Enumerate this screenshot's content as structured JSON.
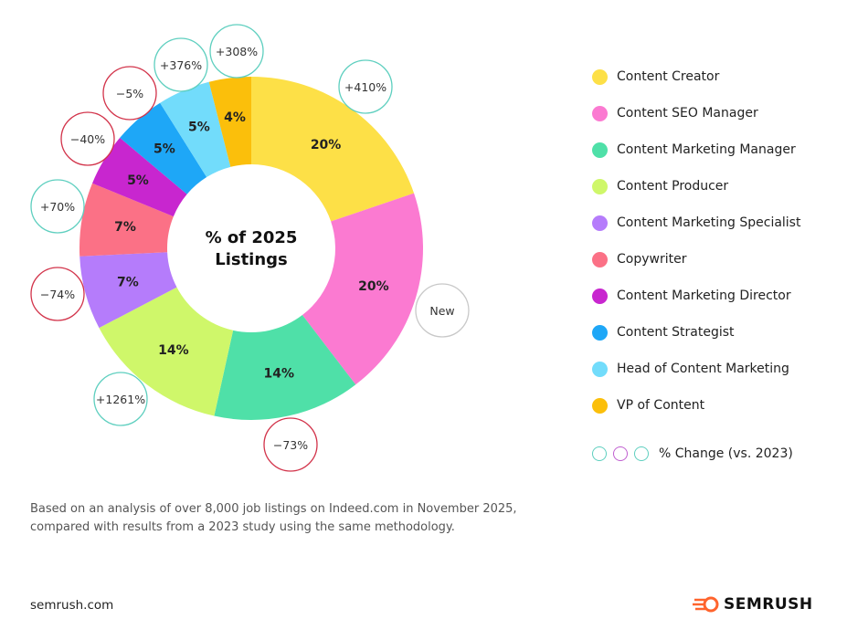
{
  "chart_data": {
    "type": "pie",
    "title": "% of 2025 Listings",
    "categories": [
      "Content Creator",
      "Content SEO Manager",
      "Content Marketing Manager",
      "Content Producer",
      "Content Marketing Specialist",
      "Copywriter",
      "Content Marketing Director",
      "Content Strategist",
      "Head of Content Marketing",
      "VP of Content"
    ],
    "values": [
      20,
      20,
      14,
      14,
      7,
      7,
      5,
      5,
      5,
      4
    ],
    "value_labels": [
      "20%",
      "20%",
      "14%",
      "14%",
      "7%",
      "7%",
      "5%",
      "5%",
      "5%",
      "4%"
    ],
    "change_labels": [
      "+410%",
      "New",
      "−73%",
      "+1261%",
      "−74%",
      "+70%",
      "−40%",
      "−5%",
      "+376%",
      "+308%"
    ],
    "change_kind": [
      "up",
      "new",
      "down",
      "up",
      "down",
      "up",
      "down",
      "down",
      "up",
      "up"
    ],
    "colors": [
      "#fde047",
      "#fb7ad1",
      "#4fe0a8",
      "#cff76a",
      "#b57cfb",
      "#fb7186",
      "#c826cf",
      "#1ea7f7",
      "#72dcfb",
      "#fbbf0b"
    ],
    "legend_title": "% Change (vs. 2023)",
    "legend_placement": "right"
  },
  "change_colors": {
    "up": "#5ecfbf",
    "down": "#d2334a",
    "new": "#c8c8c8",
    "legend": [
      "#5ecfbf",
      "#c05fd0",
      "#5ecfbf"
    ]
  },
  "footnote": [
    "Based on an analysis of over 8,000 job listings on Indeed.com in November 2025,",
    "compared with results from a 2023 study using the same methodology."
  ],
  "site": "semrush.com",
  "brand": "SEMRUSH"
}
